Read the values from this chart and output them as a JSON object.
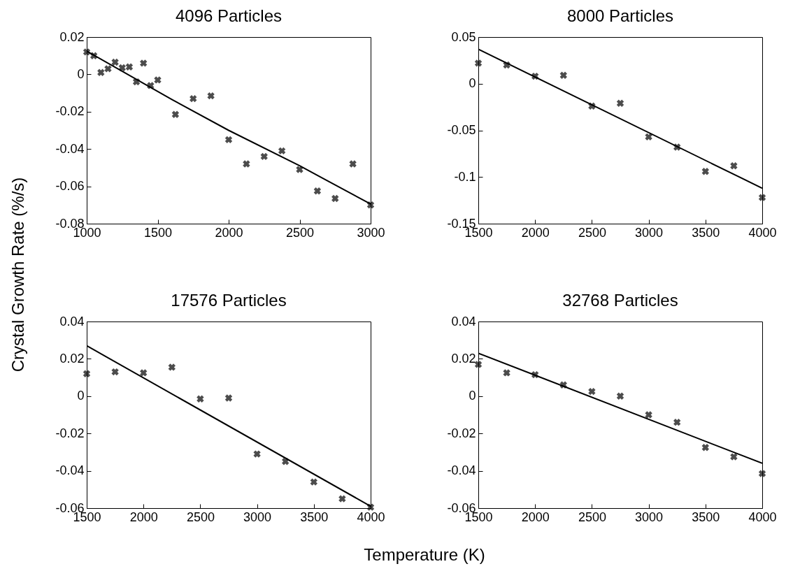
{
  "chart_data": [
    {
      "type": "scatter",
      "title": "4096 Particles",
      "ylabel": "Crystal Growth Rate (%/s)",
      "xlim": [
        1000,
        3000
      ],
      "xticks": [
        1000,
        1500,
        2000,
        2500,
        3000
      ],
      "ylim": [
        -0.08,
        0.02
      ],
      "yticks": [
        -0.08,
        -0.06,
        -0.04,
        -0.02,
        0,
        0.02
      ],
      "grid": false,
      "series": [
        {
          "type": "scatter",
          "marker": "cross",
          "color": "#000000",
          "x": [
            1000,
            1050,
            1100,
            1150,
            1200,
            1250,
            1300,
            1350,
            1400,
            1450,
            1500,
            1625,
            1750,
            1875,
            2000,
            2125,
            2250,
            2375,
            2500,
            2625,
            2750,
            2875,
            3000
          ],
          "values": [
            0.012,
            0.01,
            0.001,
            0.003,
            0.0065,
            0.0035,
            0.004,
            -0.004,
            0.006,
            -0.006,
            -0.003,
            -0.0215,
            -0.013,
            -0.0115,
            -0.035,
            -0.048,
            -0.044,
            -0.041,
            -0.051,
            -0.0625,
            -0.0665,
            -0.048,
            -0.07
          ]
        },
        {
          "type": "line",
          "marker": "none",
          "line_style": "solid",
          "color": "#000000",
          "x": [
            1000,
            1600,
            2000,
            2500,
            3000
          ],
          "values": [
            0.0125,
            -0.0135,
            -0.03,
            -0.049,
            -0.0695
          ]
        }
      ]
    },
    {
      "type": "scatter",
      "title": "8000 Particles",
      "xlim": [
        1500,
        4000
      ],
      "xticks": [
        1500,
        2000,
        2500,
        3000,
        3500,
        4000
      ],
      "ylim": [
        -0.15,
        0.05
      ],
      "yticks": [
        -0.15,
        -0.1,
        -0.05,
        0,
        0.05
      ],
      "grid": false,
      "series": [
        {
          "type": "scatter",
          "marker": "cross",
          "color": "#000000",
          "x": [
            1500,
            1750,
            2000,
            2250,
            2500,
            2750,
            3000,
            3250,
            3500,
            3750,
            4000
          ],
          "values": [
            0.022,
            0.02,
            0.008,
            0.009,
            -0.024,
            -0.021,
            -0.057,
            -0.068,
            -0.094,
            -0.088,
            -0.122
          ]
        },
        {
          "type": "line",
          "marker": "none",
          "line_style": "solid",
          "color": "#000000",
          "x": [
            1500,
            4000
          ],
          "values": [
            0.037,
            -0.112
          ]
        }
      ]
    },
    {
      "type": "scatter",
      "title": "17576 Particles",
      "xlabel": "Temperature (K)",
      "xlim": [
        1500,
        4000
      ],
      "xticks": [
        1500,
        2000,
        2500,
        3000,
        3500,
        4000
      ],
      "ylim": [
        -0.06,
        0.04
      ],
      "yticks": [
        -0.06,
        -0.04,
        -0.02,
        0,
        0.02,
        0.04
      ],
      "grid": false,
      "series": [
        {
          "type": "scatter",
          "marker": "cross",
          "color": "#000000",
          "x": [
            1500,
            1750,
            2000,
            2250,
            2500,
            2750,
            3000,
            3250,
            3500,
            3750,
            4000
          ],
          "values": [
            0.012,
            0.013,
            0.0125,
            0.0155,
            -0.0015,
            -0.001,
            -0.031,
            -0.035,
            -0.046,
            -0.055,
            -0.0595
          ]
        },
        {
          "type": "line",
          "marker": "none",
          "line_style": "solid",
          "color": "#000000",
          "x": [
            1500,
            4000
          ],
          "values": [
            0.027,
            -0.059
          ]
        }
      ]
    },
    {
      "type": "scatter",
      "title": "32768 Particles",
      "xlim": [
        1500,
        4000
      ],
      "xticks": [
        1500,
        2000,
        2500,
        3000,
        3500,
        4000
      ],
      "ylim": [
        -0.06,
        0.04
      ],
      "yticks": [
        -0.06,
        -0.04,
        -0.02,
        0,
        0.02,
        0.04
      ],
      "grid": false,
      "series": [
        {
          "type": "scatter",
          "marker": "cross",
          "color": "#000000",
          "x": [
            1500,
            1750,
            2000,
            2250,
            2500,
            2750,
            3000,
            3250,
            3500,
            3750,
            4000
          ],
          "values": [
            0.017,
            0.0125,
            0.0115,
            0.006,
            0.0025,
            0.0,
            -0.01,
            -0.014,
            -0.0275,
            -0.0325,
            -0.0415
          ]
        },
        {
          "type": "line",
          "marker": "none",
          "line_style": "solid",
          "color": "#000000",
          "x": [
            1500,
            4000
          ],
          "values": [
            0.023,
            -0.036
          ]
        }
      ]
    }
  ]
}
